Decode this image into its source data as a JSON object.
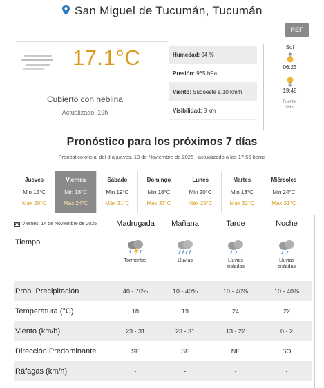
{
  "header": {
    "location": "San Miguel de Tucumán, Tucumán"
  },
  "ref_button": "REF",
  "current": {
    "temperature": "17.1°C",
    "condition": "Cubierto con neblina",
    "updated": "Actualizado: 19h"
  },
  "details": [
    {
      "label": "Humedad:",
      "value": "94 %"
    },
    {
      "label": "Presión:",
      "value": "965 hPa"
    },
    {
      "label": "Viento:",
      "value": "Sudoeste a 10 km/h"
    },
    {
      "label": "Visibilidad:",
      "value": "8 km"
    }
  ],
  "sun": {
    "title": "Sol",
    "sunrise": "06:23",
    "sunset": "19:48",
    "source_line1": "Fuente:",
    "source_line2": "SHN"
  },
  "forecast": {
    "title": "Pronóstico para los próximos 7 días",
    "subtitle": "Pronóstico oficial del día jueves, 13 de Noviembre de 2025 - actualizado a las 17:56 horas",
    "days": [
      {
        "name": "Jueves",
        "min": "Min 15°C",
        "max": "Máx 20°C"
      },
      {
        "name": "Viernes",
        "min": "Min 18°C",
        "max": "Máx 24°C"
      },
      {
        "name": "Sábado",
        "min": "Min 19°C",
        "max": "Máx 31°C"
      },
      {
        "name": "Domingo",
        "min": "Min 18°C",
        "max": "Máx 33°C"
      },
      {
        "name": "Lunes",
        "min": "Min 20°C",
        "max": "Máx 29°C"
      },
      {
        "name": "Martes",
        "min": "Min 13°C",
        "max": "Máx 32°C"
      },
      {
        "name": "Miércoles",
        "min": "Min 24°C",
        "max": "Máx 31°C"
      }
    ],
    "selected_day": "Viernes"
  },
  "detail_table": {
    "date": "Viernes, 14 de Noviembre de 2025",
    "periods": [
      "Madrugada",
      "Mañana",
      "Tarde",
      "Noche"
    ],
    "weather_label": "Tiempo",
    "weather": [
      {
        "icon": "thunderstorm-icon",
        "line1": "Tormentas",
        "line2": ""
      },
      {
        "icon": "rain-icon",
        "line1": "Lluvias",
        "line2": ""
      },
      {
        "icon": "scattered-rain-icon",
        "line1": "Lluvias",
        "line2": "aisladas"
      },
      {
        "icon": "scattered-rain-icon",
        "line1": "Lluvias",
        "line2": "aisladas"
      }
    ],
    "rows": [
      {
        "label": "Prob. Precipitación",
        "values": [
          "40 - 70%",
          "10 - 40%",
          "10 - 40%",
          "10 - 40%"
        ]
      },
      {
        "label": "Temperatura (°C)",
        "values": [
          "18",
          "19",
          "24",
          "22"
        ]
      },
      {
        "label": "Viento (km/h)",
        "values": [
          "23 - 31",
          "23 - 31",
          "13 - 22",
          "0 - 2"
        ]
      },
      {
        "label": "Dirección Predominante",
        "values": [
          "SE",
          "SE",
          "NE",
          "SO"
        ]
      },
      {
        "label": "Ráfagas (km/h)",
        "values": [
          "-",
          "-",
          "-",
          "-"
        ]
      }
    ]
  },
  "colors": {
    "accent_temp": "#d99a1e",
    "selected_day_bg": "#8a8a8a",
    "pin": "#2f7bbf"
  }
}
